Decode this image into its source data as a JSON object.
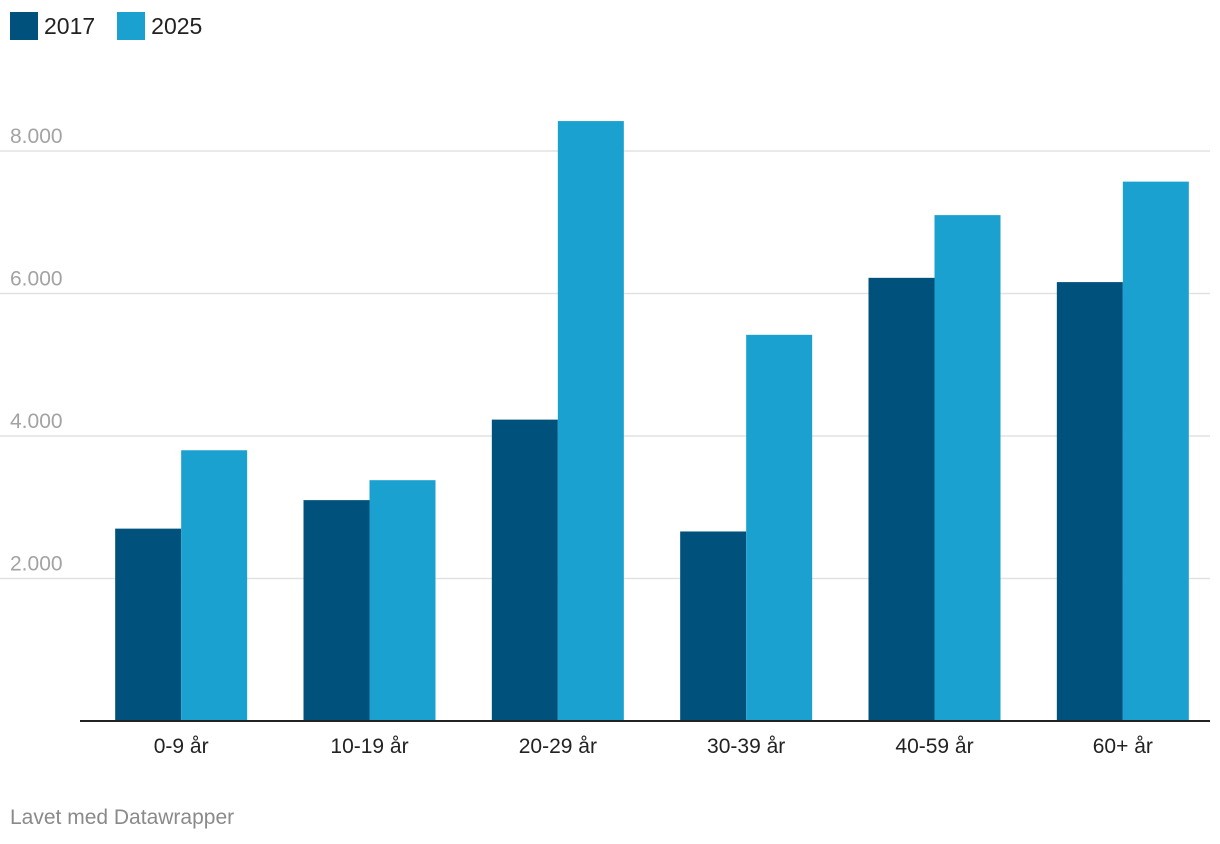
{
  "legend": [
    {
      "label": "2017",
      "color": "#00527c"
    },
    {
      "label": "2025",
      "color": "#1aa1cf"
    }
  ],
  "footer": "Lavet med Datawrapper",
  "chart_data": {
    "type": "bar",
    "title": "",
    "xlabel": "",
    "ylabel": "",
    "categories": [
      "0-9 år",
      "10-19 år",
      "20-29 år",
      "30-39 år",
      "40-59 år",
      "60+ år"
    ],
    "series": [
      {
        "name": "2017",
        "color": "#00527c",
        "values": [
          2700,
          3100,
          4230,
          2660,
          6220,
          6160
        ]
      },
      {
        "name": "2025",
        "color": "#1aa1cf",
        "values": [
          3800,
          3380,
          8420,
          5420,
          7100,
          7570
        ]
      }
    ],
    "yticks": [
      2000,
      4000,
      6000,
      8000
    ],
    "ytick_labels": [
      "2.000",
      "4.000",
      "6.000",
      "8.000"
    ],
    "ylim": [
      0,
      9000
    ],
    "grid": true,
    "legend_position": "top-left"
  }
}
